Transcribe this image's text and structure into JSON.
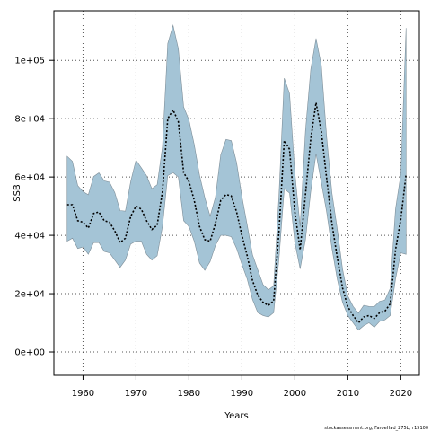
{
  "chart_data": {
    "type": "line",
    "title": "",
    "xlabel": "Years",
    "ylabel": "SSB",
    "xlim": [
      1954.5,
      2023.5
    ],
    "ylim": [
      -8000,
      117000
    ],
    "x_ticks": [
      1960,
      1970,
      1980,
      1990,
      2000,
      2010,
      2020
    ],
    "x_tick_labels": [
      "1960",
      "1970",
      "1980",
      "1990",
      "2000",
      "2010",
      "2020"
    ],
    "y_ticks": [
      0,
      20000,
      40000,
      60000,
      80000,
      100000
    ],
    "y_tick_labels": [
      "0e+00",
      "2e+04",
      "4e+04",
      "6e+04",
      "8e+04",
      "1e+05"
    ],
    "grid": true,
    "colors": {
      "band": "#a4c4d6",
      "band_edge": "#7f8f99",
      "line": "#000000",
      "grid": "#555555"
    },
    "credit": "stockassessment.org, FaroeHad_275b, r15100",
    "series": [
      {
        "years": [
          1957,
          1958,
          1959,
          1960,
          1961,
          1962,
          1963,
          1964,
          1965,
          1966,
          1967,
          1968,
          1969,
          1970,
          1971,
          1972,
          1973,
          1974,
          1975,
          1976,
          1977,
          1978,
          1979,
          1980,
          1981,
          1982,
          1983,
          1984,
          1985,
          1986,
          1987,
          1988,
          1989,
          1990,
          1991,
          1992,
          1993,
          1994,
          1995,
          1996,
          1997,
          1998,
          1999,
          2000,
          2001,
          2002,
          2003,
          2004,
          2005,
          2006,
          2007,
          2008,
          2009,
          2010,
          2011,
          2012,
          2013,
          2014,
          2015,
          2016,
          2017,
          2018,
          2019,
          2020,
          2021
        ],
        "estimate": [
          50500,
          50500,
          45000,
          44500,
          42500,
          47500,
          48000,
          45000,
          44500,
          41500,
          37500,
          39000,
          46500,
          50000,
          49000,
          45000,
          42000,
          43500,
          55000,
          80000,
          83000,
          79000,
          61500,
          58500,
          52000,
          43000,
          38500,
          38000,
          44000,
          52000,
          54000,
          53500,
          48000,
          40000,
          33000,
          24500,
          19500,
          17000,
          16000,
          17500,
          41500,
          72500,
          69500,
          48000,
          35000,
          54000,
          73000,
          85500,
          75500,
          59500,
          44000,
          32500,
          22000,
          15500,
          12500,
          10000,
          12000,
          12500,
          11500,
          13500,
          14000,
          16500,
          35000,
          45500,
          61000
        ],
        "lower": [
          38000,
          39000,
          35500,
          36000,
          33500,
          37500,
          37500,
          34500,
          34000,
          31500,
          29000,
          31500,
          37000,
          38000,
          38000,
          33500,
          31500,
          33000,
          43000,
          60500,
          61500,
          60000,
          45000,
          43000,
          38000,
          30500,
          28000,
          31000,
          36500,
          40000,
          40000,
          39500,
          35500,
          30000,
          25000,
          18000,
          13500,
          12500,
          12000,
          13500,
          32000,
          56000,
          54500,
          37500,
          28500,
          38500,
          55000,
          68000,
          58000,
          48000,
          35500,
          25000,
          17000,
          12500,
          10000,
          7500,
          9000,
          10000,
          8500,
          10500,
          11000,
          12500,
          25000,
          34000,
          33500
        ]
      }
    ]
  }
}
